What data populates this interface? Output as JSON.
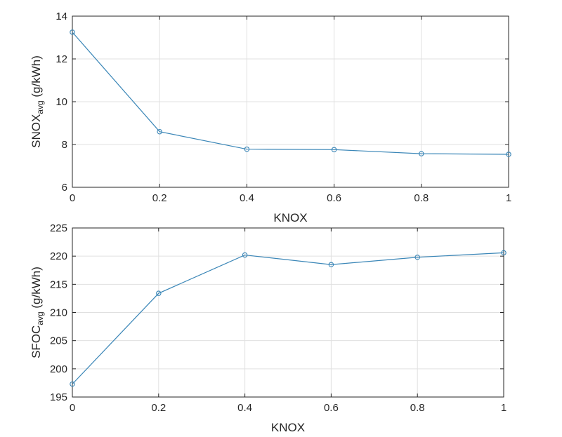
{
  "chart_data": [
    {
      "type": "line",
      "xlabel": "KNOX",
      "ylabel_main": "SNOX",
      "ylabel_sub": "avg",
      "ylabel_unit": " (g/kWh)",
      "xlim": [
        0,
        1
      ],
      "ylim": [
        6,
        14
      ],
      "xticks": [
        0,
        0.2,
        0.4,
        0.6,
        0.8,
        1
      ],
      "xtick_labels": [
        "0",
        "0.2",
        "0.4",
        "0.6",
        "0.8",
        "1"
      ],
      "yticks": [
        6,
        8,
        10,
        12,
        14
      ],
      "ytick_labels": [
        "6",
        "8",
        "10",
        "12",
        "14"
      ],
      "grid": true,
      "color": "#3a86b7",
      "marker": "circle",
      "series": [
        {
          "x": [
            0,
            0.2,
            0.4,
            0.6,
            0.8,
            1
          ],
          "values": [
            13.25,
            8.6,
            7.78,
            7.76,
            7.57,
            7.54
          ]
        }
      ]
    },
    {
      "type": "line",
      "xlabel": "KNOX",
      "ylabel_main": "SFOC",
      "ylabel_sub": "avg",
      "ylabel_unit": " (g/kWh)",
      "xlim": [
        0,
        1
      ],
      "ylim": [
        195,
        225
      ],
      "xticks": [
        0,
        0.2,
        0.4,
        0.6,
        0.8,
        1
      ],
      "xtick_labels": [
        "0",
        "0.2",
        "0.4",
        "0.6",
        "0.8",
        "1"
      ],
      "yticks": [
        195,
        200,
        205,
        210,
        215,
        220,
        225
      ],
      "ytick_labels": [
        "195",
        "200",
        "205",
        "210",
        "215",
        "220",
        "225"
      ],
      "grid": true,
      "color": "#3a86b7",
      "marker": "circle",
      "series": [
        {
          "x": [
            0,
            0.2,
            0.4,
            0.6,
            0.8,
            1
          ],
          "values": [
            197.3,
            213.4,
            220.2,
            218.5,
            219.8,
            220.6
          ]
        }
      ]
    }
  ]
}
